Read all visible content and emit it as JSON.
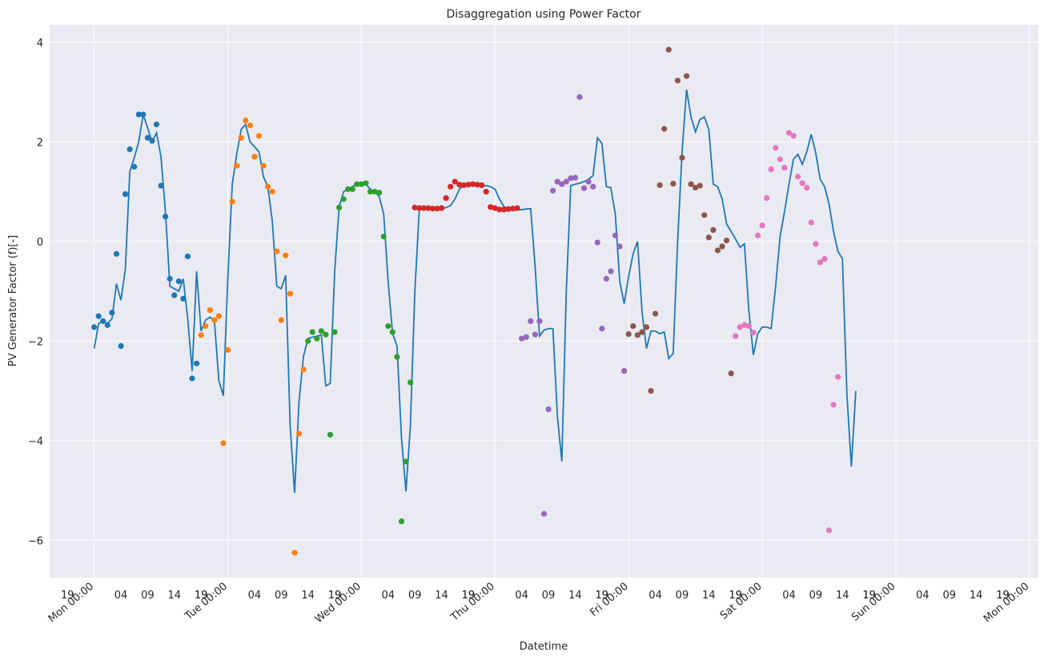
{
  "chart_data": {
    "type": "scatter",
    "title": "Disaggregation using Power Factor",
    "xlabel": "Datetime",
    "ylabel": "PV Generator Factor (f)[-]",
    "ylim": [
      -6.75,
      4.35
    ],
    "xlim": [
      -10,
      212
    ],
    "grid": true,
    "yticks": [
      -6,
      -4,
      -2,
      0,
      2,
      4
    ],
    "ytick_labels": [
      "−6",
      "−4",
      "−2",
      "0",
      "2",
      "4"
    ],
    "x_major_ticks": [
      {
        "x": 0,
        "label": "Mon 00:00"
      },
      {
        "x": 30,
        "label": "Tue 00:00"
      },
      {
        "x": 60,
        "label": "Wed 00:00"
      },
      {
        "x": 90,
        "label": "Thu 00:00"
      },
      {
        "x": 120,
        "label": "Fri 00:00"
      },
      {
        "x": 150,
        "label": "Sat 00:00"
      },
      {
        "x": 180,
        "label": "Sun 00:00"
      },
      {
        "x": 210,
        "label": "Mon 00:00"
      }
    ],
    "x_minor_offsets": [
      -6,
      6,
      12,
      18,
      24
    ],
    "x_minor_labels": [
      "19",
      "04",
      "09",
      "14",
      "19"
    ],
    "line": {
      "name": "",
      "color": "#1f77b4",
      "values": [
        -2.15,
        -1.65,
        -1.6,
        -1.65,
        -1.55,
        -0.85,
        -1.18,
        -0.55,
        1.4,
        1.68,
        2.0,
        2.55,
        2.28,
        2.0,
        2.18,
        1.7,
        0.6,
        -0.9,
        -0.95,
        -1.0,
        -0.75,
        -1.55,
        -2.6,
        -0.6,
        -1.8,
        -1.58,
        -1.52,
        -1.6,
        -2.8,
        -3.1,
        -0.75,
        1.15,
        1.75,
        2.25,
        2.35,
        2.0,
        1.9,
        1.8,
        1.3,
        1.1,
        0.4,
        -0.9,
        -0.95,
        -0.68,
        -3.7,
        -5.05,
        -3.2,
        -2.3,
        -1.95,
        -1.92,
        -1.9,
        -1.88,
        -2.9,
        -2.85,
        -0.6,
        0.7,
        1.0,
        1.05,
        1.1,
        1.15,
        1.18,
        1.15,
        1.05,
        1.0,
        0.9,
        0.55,
        -0.8,
        -1.85,
        -2.1,
        -3.95,
        -5.02,
        -3.7,
        -1.0,
        0.65,
        0.65,
        0.65,
        0.65,
        0.65,
        0.65,
        0.68,
        0.72,
        0.85,
        1.05,
        1.12,
        1.12,
        1.12,
        1.12,
        1.12,
        1.12,
        1.1,
        1.05,
        0.85,
        0.7,
        0.65,
        0.63,
        0.63,
        0.64,
        0.65,
        0.66,
        -0.5,
        -1.9,
        -1.78,
        -1.75,
        -1.75,
        -3.5,
        -4.42,
        -1.0,
        1.12,
        1.15,
        1.17,
        1.2,
        1.25,
        1.32,
        2.08,
        1.97,
        1.1,
        1.08,
        0.55,
        -0.8,
        -1.25,
        -0.7,
        -0.25,
        0.0,
        -1.4,
        -2.15,
        -1.8,
        -1.8,
        -1.85,
        -1.82,
        -2.35,
        -2.25,
        0.0,
        1.8,
        3.05,
        2.5,
        2.2,
        2.45,
        2.5,
        2.25,
        1.15,
        1.1,
        0.85,
        0.35,
        0.2,
        0.05,
        -0.12,
        -0.05,
        -1.4,
        -2.28,
        -1.85,
        -1.72,
        -1.72,
        -1.75,
        -0.9,
        0.1,
        0.6,
        1.15,
        1.65,
        1.75,
        1.55,
        1.8,
        2.15,
        1.78,
        1.25,
        1.1,
        0.75,
        0.2,
        -0.2,
        -0.35,
        -3.05,
        -4.52,
        -3.0
      ]
    },
    "series": [
      {
        "name": "",
        "color": "#1f77b4",
        "x": [
          0,
          1,
          2,
          3,
          4,
          5,
          6,
          7,
          8,
          9,
          10,
          11,
          12,
          13,
          14,
          15,
          16,
          17,
          18,
          19,
          20,
          21,
          22,
          23
        ],
        "values": [
          -1.72,
          -1.5,
          -1.6,
          -1.68,
          -1.43,
          -0.25,
          -2.1,
          0.95,
          1.85,
          1.5,
          2.55,
          2.55,
          2.08,
          2.02,
          2.35,
          1.12,
          0.5,
          -0.75,
          -1.08,
          -0.8,
          -1.15,
          -0.3,
          -2.75,
          -2.45
        ]
      },
      {
        "name": "",
        "color": "#ff7f0e",
        "x": [
          24,
          25,
          26,
          27,
          28,
          29,
          30,
          31,
          32,
          33,
          34,
          35,
          36,
          37,
          38,
          39,
          40,
          41,
          42,
          43,
          44,
          45,
          46,
          47
        ],
        "values": [
          -1.88,
          -1.7,
          -1.38,
          -1.58,
          -1.5,
          -4.05,
          -2.18,
          0.8,
          1.52,
          2.08,
          2.43,
          2.33,
          1.7,
          2.12,
          1.52,
          1.1,
          1.0,
          -0.2,
          -1.58,
          -0.28,
          -1.05,
          -6.25,
          -3.86,
          -2.57
        ]
      },
      {
        "name": "",
        "color": "#2ca02c",
        "x": [
          48,
          49,
          50,
          51,
          52,
          53,
          54,
          55,
          56,
          57,
          58,
          59,
          60,
          61,
          62,
          63,
          64,
          65,
          66,
          67,
          68,
          69,
          70,
          71
        ],
        "values": [
          -2.0,
          -1.82,
          -1.95,
          -1.8,
          -1.87,
          -3.88,
          -1.82,
          0.68,
          0.85,
          1.05,
          1.05,
          1.15,
          1.15,
          1.17,
          1.0,
          1.0,
          0.98,
          0.1,
          -1.7,
          -1.82,
          -2.32,
          -5.62,
          -4.42,
          -2.83
        ]
      },
      {
        "name": "",
        "color": "#d62728",
        "x": [
          72,
          73,
          74,
          75,
          76,
          77,
          78,
          79,
          80,
          81,
          82,
          83,
          84,
          85,
          86,
          87,
          88,
          89,
          90,
          91,
          92,
          93,
          94,
          95
        ],
        "values": [
          0.68,
          0.67,
          0.67,
          0.67,
          0.66,
          0.66,
          0.67,
          0.87,
          1.1,
          1.2,
          1.14,
          1.13,
          1.14,
          1.15,
          1.14,
          1.13,
          1.0,
          0.69,
          0.67,
          0.64,
          0.64,
          0.65,
          0.66,
          0.67
        ]
      },
      {
        "name": "",
        "color": "#9467bd",
        "x": [
          96,
          97,
          98,
          99,
          100,
          101,
          102,
          103,
          104,
          105,
          106,
          107,
          108,
          109,
          110,
          111,
          112,
          113,
          114,
          115,
          116,
          117,
          118,
          119
        ],
        "values": [
          -1.95,
          -1.92,
          -1.6,
          -1.87,
          -1.6,
          -5.47,
          -3.37,
          1.02,
          1.2,
          1.15,
          1.2,
          1.27,
          1.28,
          2.9,
          1.07,
          1.2,
          1.1,
          -0.02,
          -1.75,
          -0.75,
          -0.6,
          0.12,
          -0.1,
          -2.6
        ]
      },
      {
        "name": "",
        "color": "#8c564b",
        "x": [
          120,
          121,
          122,
          123,
          124,
          125,
          126,
          127,
          128,
          129,
          130,
          131,
          132,
          133,
          134,
          135,
          136,
          137,
          138,
          139,
          140,
          141,
          142,
          143
        ],
        "values": [
          -1.86,
          -1.7,
          -1.88,
          -1.82,
          -1.72,
          -3.0,
          -1.45,
          1.13,
          2.26,
          3.85,
          1.16,
          3.23,
          1.68,
          3.32,
          1.15,
          1.08,
          1.12,
          0.53,
          0.08,
          0.23,
          -0.18,
          -0.1,
          0.02,
          -2.65
        ]
      },
      {
        "name": "",
        "color": "#e377c2",
        "x": [
          144,
          145,
          146,
          147,
          148,
          149,
          150,
          151,
          152,
          153,
          154,
          155,
          156,
          157,
          158,
          159,
          160,
          161,
          162,
          163,
          164,
          165,
          166,
          167
        ],
        "values": [
          -1.9,
          -1.72,
          -1.68,
          -1.7,
          -1.83,
          0.12,
          0.32,
          0.87,
          1.45,
          1.88,
          1.65,
          1.48,
          2.18,
          2.12,
          1.3,
          1.17,
          1.08,
          0.38,
          -0.05,
          -0.42,
          -0.35,
          -5.8,
          -3.28,
          -2.72
        ]
      }
    ]
  }
}
